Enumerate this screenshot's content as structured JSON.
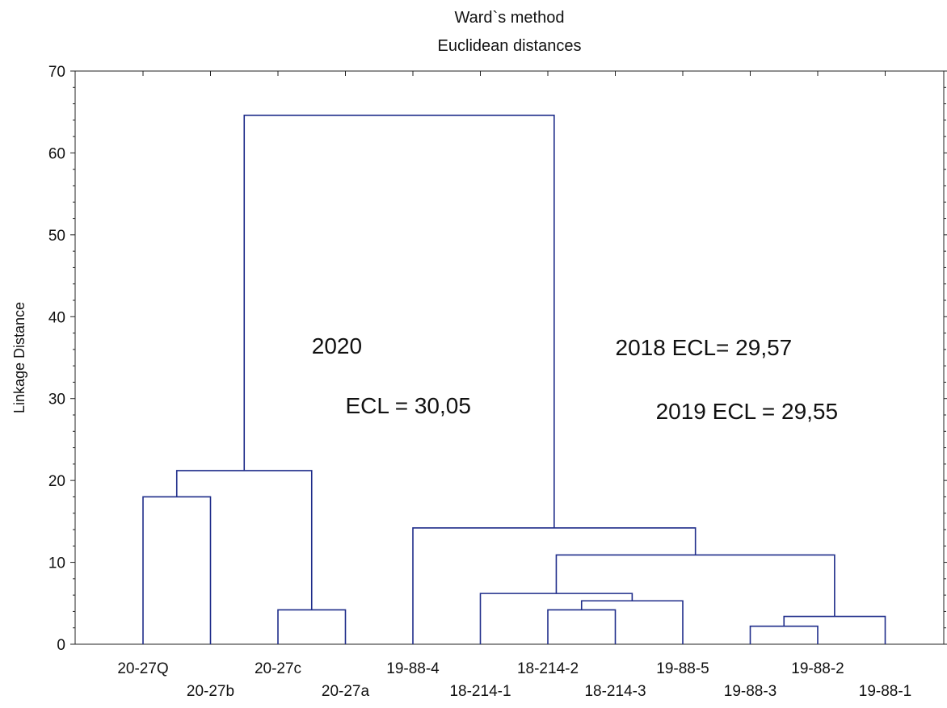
{
  "chart_data": {
    "type": "dendrogram",
    "title": "Ward`s method",
    "subtitle": "Euclidean distances",
    "xlabel": "",
    "ylabel": "Linkage Distance",
    "ylim": [
      0,
      70
    ],
    "yticks": [
      0,
      10,
      20,
      30,
      40,
      50,
      60,
      70
    ],
    "grid": false,
    "leaves": [
      "20-27Q",
      "20-27b",
      "20-27c",
      "20-27a",
      "19-88-4",
      "18-214-1",
      "18-214-2",
      "18-214-3",
      "19-88-5",
      "19-88-3",
      "19-88-2",
      "19-88-1"
    ],
    "merges": [
      {
        "left": "20-27Q",
        "right": "20-27b",
        "height": 18.0
      },
      {
        "left": "20-27c",
        "right": "20-27a",
        "height": 4.2
      },
      {
        "left": "C1",
        "right": "C2",
        "height": 21.2
      },
      {
        "left": "18-214-2",
        "right": "18-214-3",
        "height": 4.2
      },
      {
        "left": "C4",
        "right": "19-88-5",
        "height": 5.3
      },
      {
        "left": "18-214-1",
        "right": "C5",
        "height": 6.2
      },
      {
        "left": "19-88-3",
        "right": "19-88-2",
        "height": 2.2
      },
      {
        "left": "C7",
        "right": "19-88-1",
        "height": 3.4
      },
      {
        "left": "C6",
        "right": "C8",
        "height": 10.9
      },
      {
        "left": "19-88-4",
        "right": "C9",
        "height": 14.2
      },
      {
        "left": "C3",
        "right": "C10",
        "height": 64.6
      }
    ],
    "annotations": [
      {
        "text": "2020",
        "x": 2.5,
        "y": 36.5
      },
      {
        "text": "ECL = 30,05",
        "x": 3.0,
        "y": 29.2
      },
      {
        "text": "2018 ECL= 29,57",
        "x": 7.0,
        "y": 36.3
      },
      {
        "text": "2019 ECL = 29,55",
        "x": 7.6,
        "y": 28.5
      }
    ],
    "line_color": "#1f2d8a"
  }
}
